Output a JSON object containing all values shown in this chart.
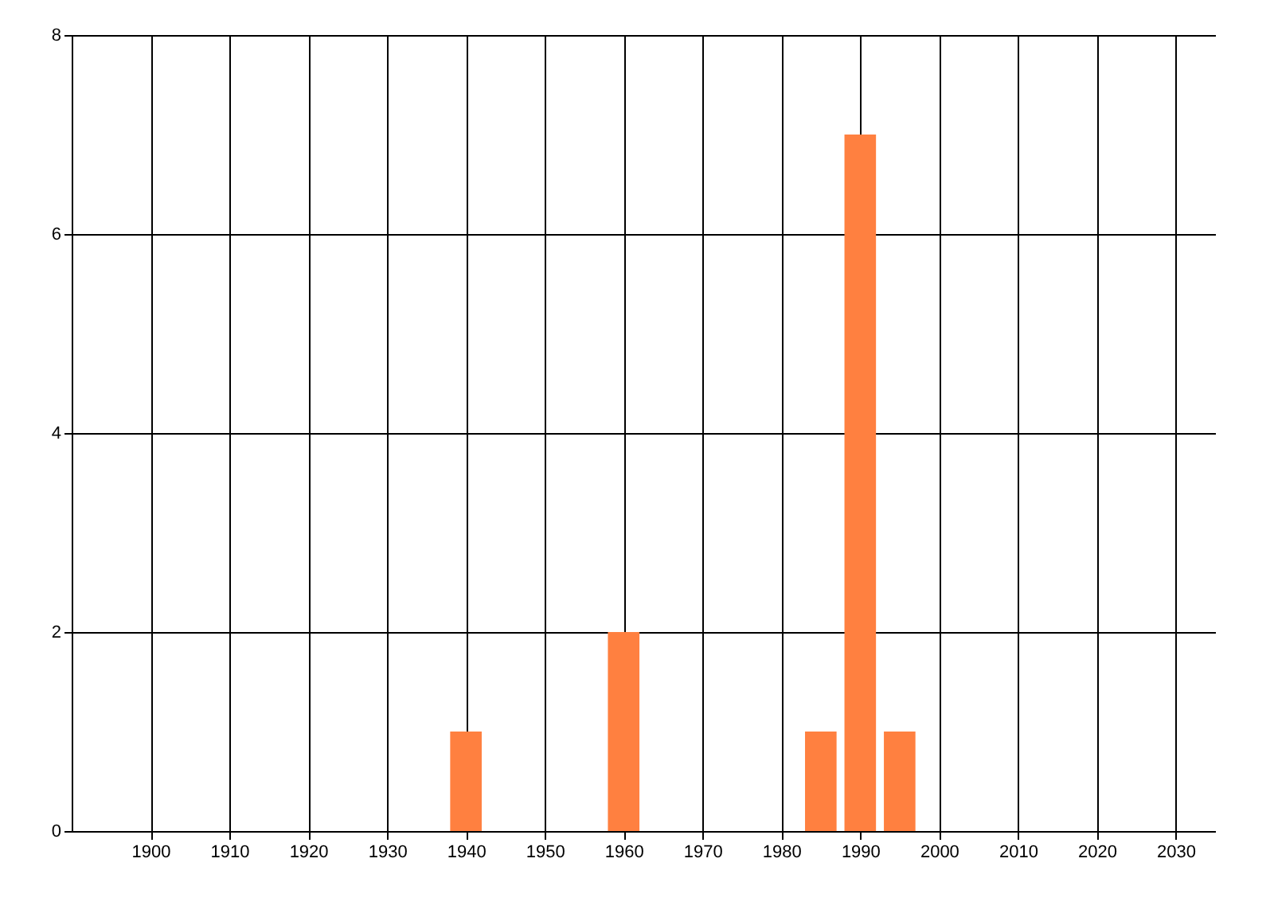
{
  "chart_data": {
    "type": "bar",
    "x": [
      1940,
      1960,
      1985,
      1990,
      1995
    ],
    "values": [
      1,
      2,
      1,
      7,
      1
    ],
    "color": "#ff8040",
    "xlim": [
      1890,
      2035
    ],
    "xticks": [
      1900,
      1910,
      1920,
      1930,
      1940,
      1950,
      1960,
      1970,
      1980,
      1990,
      2000,
      2010,
      2020,
      2030
    ],
    "ylim": [
      0,
      8
    ],
    "yticks": [
      0,
      2,
      4,
      6,
      8
    ],
    "grid": true
  }
}
